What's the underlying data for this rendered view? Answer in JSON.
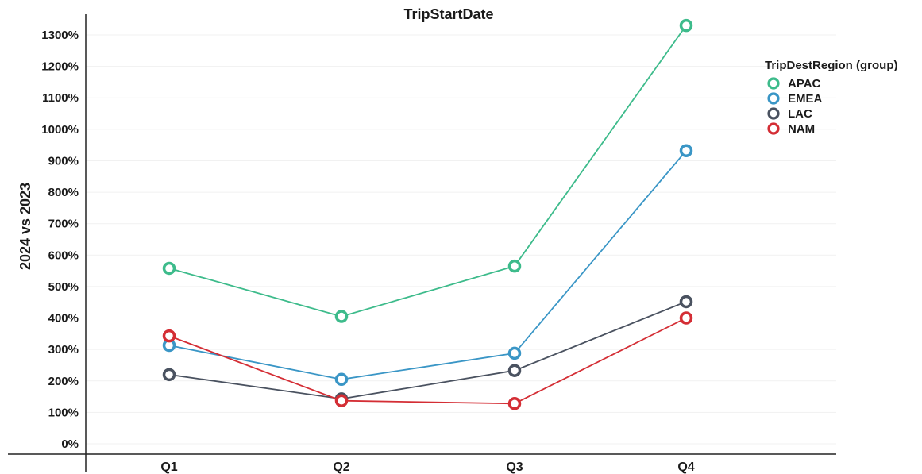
{
  "chart_data": {
    "type": "line",
    "title": "TripStartDate",
    "ylabel": "2024 vs 2023",
    "xlabel": "",
    "categories": [
      "Q1",
      "Q2",
      "Q3",
      "Q4"
    ],
    "ylim": [
      0,
      1300
    ],
    "yticks": [
      0,
      100,
      200,
      300,
      400,
      500,
      600,
      700,
      800,
      900,
      1000,
      1100,
      1200,
      1300
    ],
    "ytick_labels": [
      "0%",
      "100%",
      "200%",
      "300%",
      "400%",
      "500%",
      "600%",
      "700%",
      "800%",
      "900%",
      "1000%",
      "1100%",
      "1200%",
      "1300%"
    ],
    "grid": true,
    "legend": {
      "title": "TripDestRegion (group)",
      "position": "top-right"
    },
    "series": [
      {
        "name": "APAC",
        "color": "#3dbb8b",
        "values": [
          558,
          405,
          565,
          1330
        ]
      },
      {
        "name": "EMEA",
        "color": "#3a96c6",
        "values": [
          313,
          205,
          288,
          932
        ]
      },
      {
        "name": "LAC",
        "color": "#4a5260",
        "values": [
          220,
          143,
          233,
          452
        ]
      },
      {
        "name": "NAM",
        "color": "#d42e35",
        "values": [
          343,
          137,
          128,
          400
        ]
      }
    ]
  }
}
